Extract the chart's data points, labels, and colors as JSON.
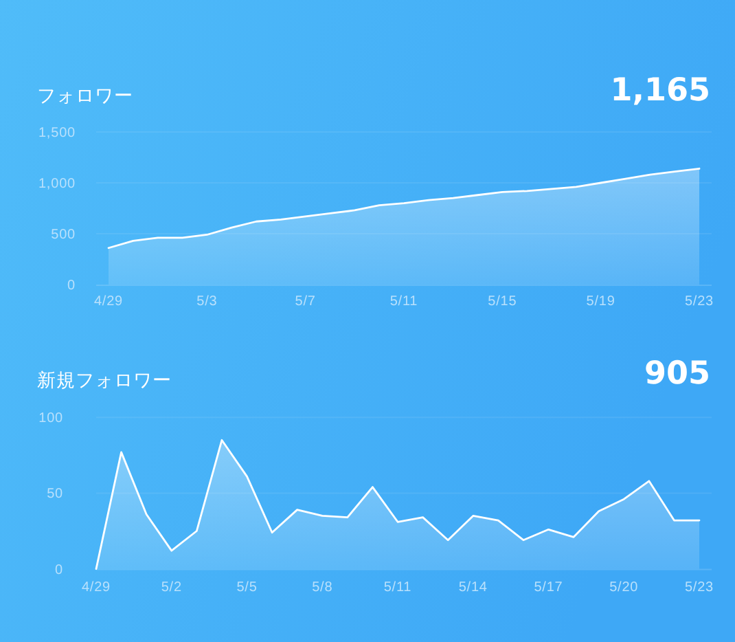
{
  "chart_data": [
    {
      "type": "area",
      "title": "フォロワー",
      "annotations": [
        "1,165"
      ],
      "categories": [
        "4/29",
        null,
        null,
        null,
        "5/3",
        null,
        null,
        null,
        "5/7",
        null,
        null,
        null,
        "5/11",
        null,
        null,
        null,
        "5/15",
        null,
        null,
        null,
        "5/19",
        null,
        null,
        null,
        "5/23"
      ],
      "values": [
        360,
        430,
        460,
        460,
        490,
        560,
        620,
        640,
        670,
        700,
        730,
        780,
        800,
        830,
        850,
        880,
        910,
        920,
        940,
        960,
        1000,
        1040,
        1080,
        1110,
        1140
      ],
      "color": "#ffffff",
      "ylim": [
        0,
        1500
      ],
      "yticks": [
        0,
        500,
        {
          "value": 1000,
          "label": "1,000"
        },
        {
          "value": 1500,
          "label": "1,500"
        }
      ],
      "grid": "y",
      "line_style": "solid"
    },
    {
      "type": "area",
      "title": "新規フォロワー",
      "annotations": [
        "905"
      ],
      "categories": [
        "4/29",
        null,
        null,
        "5/2",
        null,
        null,
        "5/5",
        null,
        null,
        "5/8",
        null,
        null,
        "5/11",
        null,
        null,
        "5/14",
        null,
        null,
        "5/17",
        null,
        null,
        "5/20",
        null,
        null,
        "5/23"
      ],
      "values": [
        0,
        77,
        36,
        12,
        25,
        85,
        61,
        24,
        39,
        35,
        34,
        54,
        31,
        34,
        19,
        35,
        32,
        19,
        26,
        21,
        38,
        46,
        58,
        32,
        32
      ],
      "color": "#ffffff",
      "ylim": [
        0,
        100
      ],
      "yticks": [
        0,
        50,
        100
      ],
      "grid": "y",
      "line_style": "solid"
    }
  ]
}
